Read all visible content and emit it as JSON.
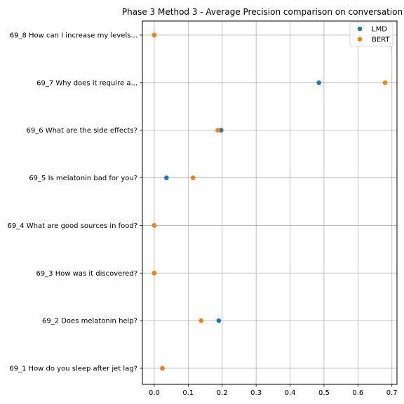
{
  "chart_data": {
    "type": "scatter",
    "title": "Phase 3 Method 3 - Average Precision comparison on conversation",
    "xlabel": "",
    "ylabel": "",
    "xlim": [
      -0.035,
      0.715
    ],
    "xticks": [
      0.0,
      0.1,
      0.2,
      0.3,
      0.4,
      0.5,
      0.6,
      0.7
    ],
    "xtick_labels": [
      "0.0",
      "0.1",
      "0.2",
      "0.3",
      "0.4",
      "0.5",
      "0.6",
      "0.7"
    ],
    "grid": true,
    "legend_position": "top-right",
    "categories": [
      "69_8 How can I increase my levels...",
      "69_7 Why does it require a...",
      "69_6 What are the side effects?",
      "69_5 Is melatonin bad for you?",
      "69_4 What are good sources in food?",
      "69_3 How was it discovered?",
      "69_2 Does melatonin help?",
      "69_1 How do you sleep after jet lag?"
    ],
    "series": [
      {
        "name": "LMD",
        "color": "#1f77b4",
        "values": [
          0.0,
          0.485,
          0.197,
          0.036,
          0.0,
          0.0,
          0.19,
          0.024
        ]
      },
      {
        "name": "BERT",
        "color": "#ff7f0e",
        "values": [
          0.0,
          0.68,
          0.187,
          0.114,
          0.0,
          0.0,
          0.138,
          0.024
        ]
      }
    ]
  }
}
